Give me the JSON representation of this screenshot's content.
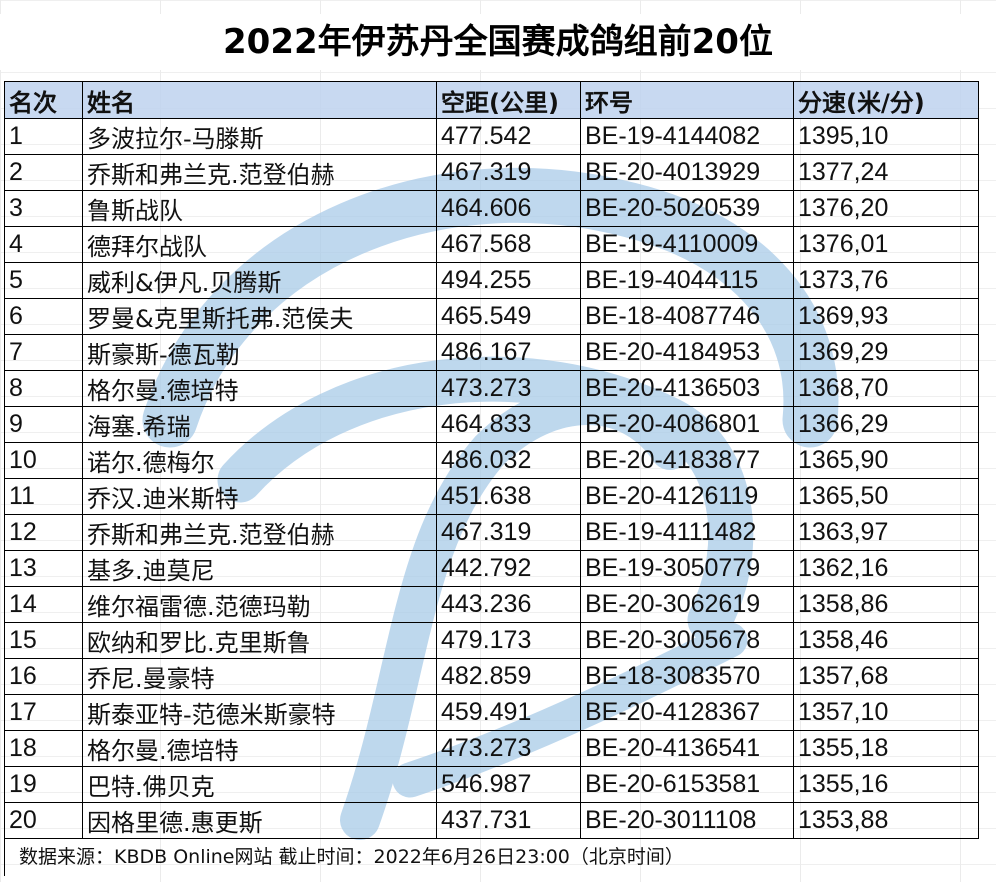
{
  "title": "2022年伊苏丹全国赛成鸽组前20位",
  "columns": [
    "名次",
    "姓名",
    "空距(公里)",
    "环号",
    "分速(米/分)"
  ],
  "rows": [
    {
      "rank": "1",
      "name": "多波拉尔-马滕斯",
      "distance": "477.542",
      "ring": "BE-19-4144082",
      "speed": "1395,10"
    },
    {
      "rank": "2",
      "name": "乔斯和弗兰克.范登伯赫",
      "distance": "467.319",
      "ring": "BE-20-4013929",
      "speed": "1377,24"
    },
    {
      "rank": "3",
      "name": "鲁斯战队",
      "distance": "464.606",
      "ring": "BE-20-5020539",
      "speed": "1376,20"
    },
    {
      "rank": "4",
      "name": "德拜尔战队",
      "distance": "467.568",
      "ring": "BE-19-4110009",
      "speed": "1376,01"
    },
    {
      "rank": "5",
      "name": "威利&伊凡.贝腾斯",
      "distance": "494.255",
      "ring": "BE-19-4044115",
      "speed": "1373,76"
    },
    {
      "rank": "6",
      "name": "罗曼&克里斯托弗.范侯夫",
      "distance": "465.549",
      "ring": "BE-18-4087746",
      "speed": "1369,93"
    },
    {
      "rank": "7",
      "name": "斯豪斯-德瓦勒",
      "distance": "486.167",
      "ring": "BE-20-4184953",
      "speed": "1369,29"
    },
    {
      "rank": "8",
      "name": "格尔曼.德培特",
      "distance": "473.273",
      "ring": "BE-20-4136503",
      "speed": "1368,70"
    },
    {
      "rank": "9",
      "name": "海塞.希瑞",
      "distance": "464.833",
      "ring": "BE-20-4086801",
      "speed": "1366,29"
    },
    {
      "rank": "10",
      "name": "诺尔.德梅尔",
      "distance": "486.032",
      "ring": "BE-20-4183877",
      "speed": "1365,90"
    },
    {
      "rank": "11",
      "name": "乔汉.迪米斯特",
      "distance": "451.638",
      "ring": "BE-20-4126119",
      "speed": "1365,50"
    },
    {
      "rank": "12",
      "name": "乔斯和弗兰克.范登伯赫",
      "distance": "467.319",
      "ring": "BE-19-4111482",
      "speed": "1363,97"
    },
    {
      "rank": "13",
      "name": "基多.迪莫尼",
      "distance": "442.792",
      "ring": "BE-19-3050779",
      "speed": "1362,16"
    },
    {
      "rank": "14",
      "name": "维尔福雷德.范德玛勒",
      "distance": "443.236",
      "ring": "BE-20-3062619",
      "speed": "1358,86"
    },
    {
      "rank": "15",
      "name": "欧纳和罗比.克里斯鲁",
      "distance": "479.173",
      "ring": "BE-20-3005678",
      "speed": "1358,46"
    },
    {
      "rank": "16",
      "name": "乔尼.曼豪特",
      "distance": "482.859",
      "ring": "BE-18-3083570",
      "speed": "1357,68"
    },
    {
      "rank": "17",
      "name": "斯泰亚特-范德米斯豪特",
      "distance": "459.491",
      "ring": "BE-20-4128367",
      "speed": "1357,10"
    },
    {
      "rank": "18",
      "name": "格尔曼.德培特",
      "distance": "473.273",
      "ring": "BE-20-4136541",
      "speed": "1355,18"
    },
    {
      "rank": "19",
      "name": "巴特.佛贝克",
      "distance": "546.987",
      "ring": "BE-20-6153581",
      "speed": "1355,16"
    },
    {
      "rank": "20",
      "name": "因格里德.惠更斯",
      "distance": "437.731",
      "ring": "BE-20-3011108",
      "speed": "1353,88"
    }
  ],
  "footer": "数据来源：KBDB Online网站  截止时间：2022年6月26日23:00（北京时间）",
  "colors": {
    "header_bg": "#bed2ee",
    "watermark": "#a9cbe8",
    "border": "#000000"
  }
}
